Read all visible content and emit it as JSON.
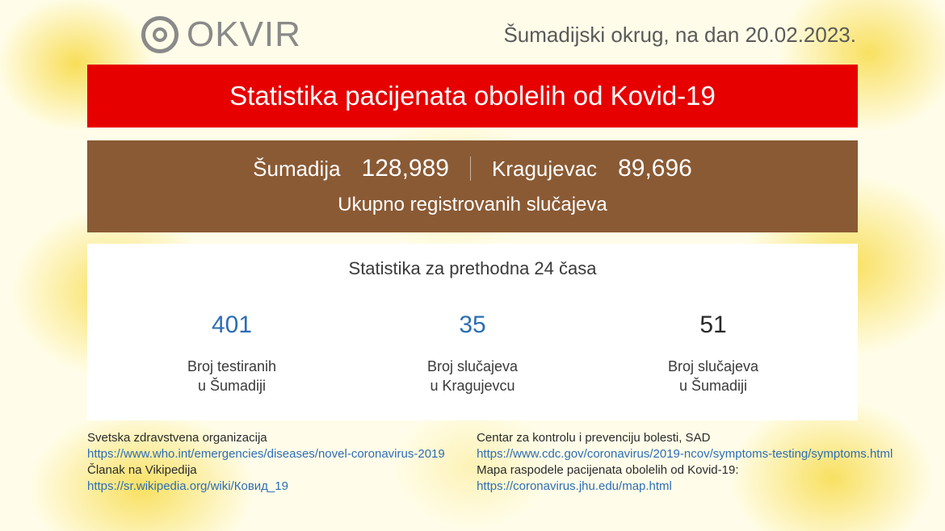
{
  "colors": {
    "red_banner_bg": "#e60000",
    "brown_panel_bg": "#8a5a34",
    "white_panel_bg": "#ffffff",
    "background_base": "#fffde9",
    "yellow_blob": "#f7d93f",
    "logo_gray": "#8a8a8a",
    "text_dark": "#3a3a3a",
    "link_blue": "#2d6db5"
  },
  "typography": {
    "banner_fontsize": 33,
    "header_date_fontsize": 26,
    "logo_fontsize": 44,
    "stat_value_fontsize": 30,
    "stat_label_fontsize": 18,
    "footer_fontsize": 15
  },
  "logo": {
    "text": "OKVIR"
  },
  "header": {
    "region_prefix": "Šumadijski okrug, na dan",
    "date": "20.02.2023."
  },
  "banner": {
    "title": "Statistika pacijenata obolelih od Kovid-19"
  },
  "totals": {
    "region1_label": "Šumadija",
    "region1_value": "128,989",
    "region2_label": "Kragujevac",
    "region2_value": "89,696",
    "subtitle": "Ukupno registrovanih slučajeva"
  },
  "stats24h": {
    "title": "Statistika za prethodna 24 časa",
    "items": [
      {
        "value": "401",
        "label_line1": "Broj testiranih",
        "label_line2": "u Šumadiji",
        "color": "blue"
      },
      {
        "value": "35",
        "label_line1": "Broj slučajeva",
        "label_line2": "u Kragujevcu",
        "color": "blue"
      },
      {
        "value": "51",
        "label_line1": "Broj slučajeva",
        "label_line2": "u Šumadiji",
        "color": "black"
      }
    ]
  },
  "footer": {
    "left": {
      "label1": "Svetska zdravstvena organizacija",
      "link1": "https://www.who.int/emergencies/diseases/novel-coronavirus-2019",
      "label2": "Članak na Vikipedija",
      "link2": "https://sr.wikipedia.org/wiki/Ковид_19"
    },
    "right": {
      "label1": "Centar za kontrolu i prevenciju bolesti, SAD",
      "link1": "https://www.cdc.gov/coronavirus/2019-ncov/symptoms-testing/symptoms.html",
      "label2": "Mapa raspodele pacijenata obolelih od Kovid-19:",
      "link2": "https://coronavirus.jhu.edu/map.html"
    }
  }
}
